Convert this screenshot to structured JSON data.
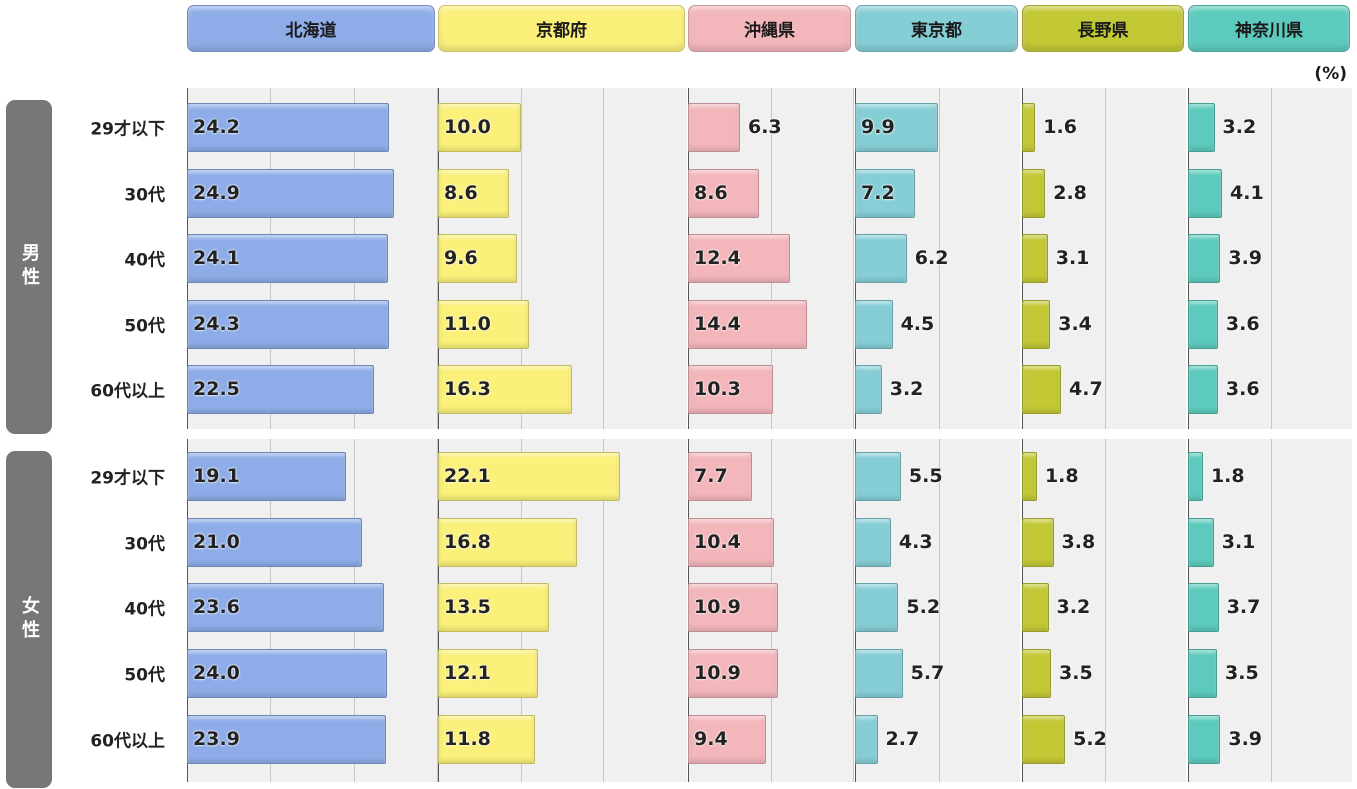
{
  "chart_data": {
    "type": "bar",
    "unit": "(%)",
    "groups": [
      {
        "label": "男性",
        "categories": [
          "29才以下",
          "30代",
          "40代",
          "50代",
          "60代以上"
        ]
      },
      {
        "label": "女性",
        "categories": [
          "29才以下",
          "30代",
          "40代",
          "50代",
          "60代以上"
        ]
      }
    ],
    "series": [
      {
        "name": "北海道",
        "color": "#8eade8",
        "values": [
          24.2,
          24.9,
          24.1,
          24.3,
          22.5,
          19.1,
          21.0,
          23.6,
          24.0,
          23.9
        ]
      },
      {
        "name": "京都府",
        "color": "#faf07a",
        "values": [
          10.0,
          8.6,
          9.6,
          11.0,
          16.3,
          22.1,
          16.8,
          13.5,
          12.1,
          11.8
        ]
      },
      {
        "name": "沖縄県",
        "color": "#f2b6bb",
        "values": [
          6.3,
          8.6,
          12.4,
          14.4,
          10.3,
          7.7,
          10.4,
          10.9,
          10.9,
          9.4
        ]
      },
      {
        "name": "東京都",
        "color": "#86ced6",
        "values": [
          9.9,
          7.2,
          6.2,
          4.5,
          3.2,
          5.5,
          4.3,
          5.2,
          5.7,
          2.7
        ]
      },
      {
        "name": "長野県",
        "color": "#c3c835",
        "values": [
          1.6,
          2.8,
          3.1,
          3.4,
          4.7,
          1.8,
          3.8,
          3.2,
          3.5,
          5.2
        ]
      },
      {
        "name": "神奈川県",
        "color": "#5ccbbd",
        "values": [
          3.2,
          4.1,
          3.9,
          3.6,
          3.6,
          1.8,
          3.1,
          3.7,
          3.5,
          3.9
        ]
      }
    ],
    "grid": true,
    "legend": "top"
  }
}
